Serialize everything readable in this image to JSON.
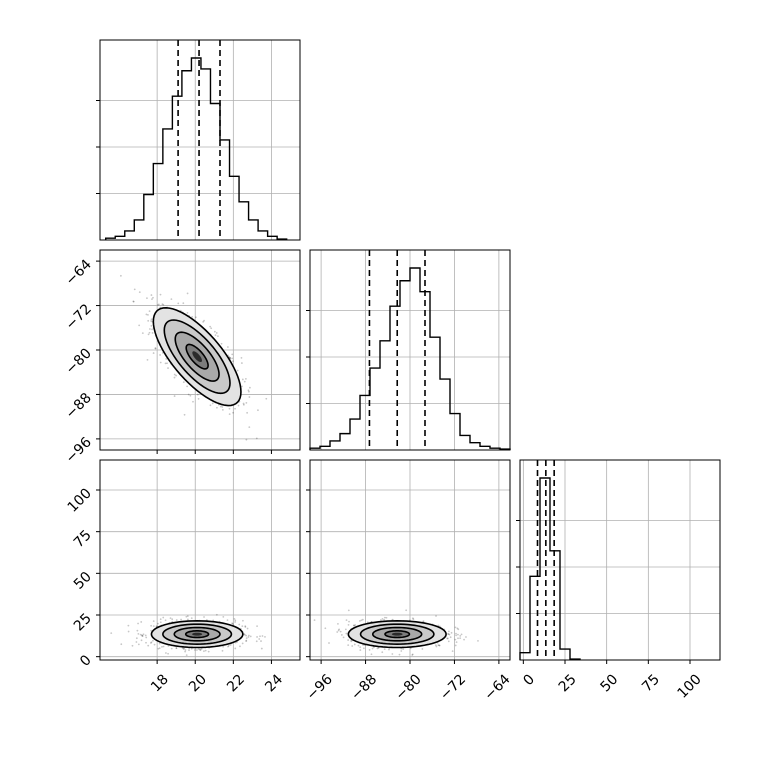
{
  "chart_data": {
    "type": "scatter",
    "kind": "corner-plot",
    "grid": true,
    "parameters": [
      {
        "range": [
          15,
          25.5
        ],
        "ticks": [
          18,
          20,
          22,
          24
        ],
        "tick_labels": [
          "18",
          "20",
          "22",
          "24"
        ],
        "quantiles": [
          19.1,
          20.2,
          21.3
        ],
        "hist_bins": [
          15.3,
          15.8,
          16.3,
          16.8,
          17.3,
          17.8,
          18.3,
          18.8,
          19.3,
          19.8,
          20.3,
          20.8,
          21.3,
          21.8,
          22.3,
          22.8,
          23.3,
          23.8,
          24.3,
          24.8
        ],
        "hist_counts": [
          0.01,
          0.02,
          0.05,
          0.11,
          0.25,
          0.42,
          0.61,
          0.79,
          0.93,
          1.0,
          0.94,
          0.75,
          0.55,
          0.35,
          0.21,
          0.11,
          0.05,
          0.02,
          0.005
        ]
      },
      {
        "range": [
          -98,
          -62
        ],
        "ticks": [
          -96,
          -88,
          -80,
          -72,
          -64
        ],
        "tick_labels": [
          "−96",
          "−88",
          "−80",
          "−72",
          "−64"
        ],
        "quantiles": [
          -87.3,
          -82.3,
          -77.3
        ],
        "hist_bins": [
          -98,
          -96.2,
          -94.4,
          -92.6,
          -90.8,
          -89,
          -87.2,
          -85.4,
          -83.6,
          -81.8,
          -80,
          -78.2,
          -76.4,
          -74.6,
          -72.8,
          -71,
          -69.2,
          -67.4,
          -65.6,
          -63.8,
          -62
        ],
        "hist_counts": [
          0.01,
          0.02,
          0.05,
          0.09,
          0.17,
          0.3,
          0.45,
          0.6,
          0.79,
          0.93,
          1.0,
          0.87,
          0.62,
          0.39,
          0.2,
          0.08,
          0.04,
          0.02,
          0.01,
          0.005
        ]
      },
      {
        "range": [
          -2,
          118
        ],
        "ticks": [
          0,
          25,
          50,
          75,
          100
        ],
        "tick_labels": [
          "0",
          "25",
          "50",
          "75",
          "100"
        ],
        "quantiles": [
          8.5,
          13.5,
          18.5
        ],
        "hist_bins": [
          -2,
          4,
          10,
          16,
          22,
          28,
          34
        ],
        "hist_counts": [
          0.04,
          0.46,
          1.0,
          0.6,
          0.06,
          0.005
        ]
      }
    ],
    "pairs": [
      {
        "row": 1,
        "col": 0,
        "center": [
          20.1,
          -81.2
        ],
        "sigma": [
          1.15,
          4.4
        ],
        "rho": -0.72,
        "levels": [
          0.5,
          1.0,
          1.5,
          2.0
        ],
        "n_points": 900
      },
      {
        "row": 2,
        "col": 0,
        "center": [
          20.1,
          13.5
        ],
        "sigma": [
          1.2,
          4.0
        ],
        "rho": 0.0,
        "levels": [
          0.5,
          1.0,
          1.5,
          2.0
        ],
        "n_points": 900
      },
      {
        "row": 2,
        "col": 1,
        "center": [
          -82.3,
          13.5
        ],
        "sigma": [
          4.4,
          4.0
        ],
        "rho": 0.0,
        "levels": [
          0.5,
          1.0,
          1.5,
          2.0
        ],
        "n_points": 900
      }
    ]
  }
}
